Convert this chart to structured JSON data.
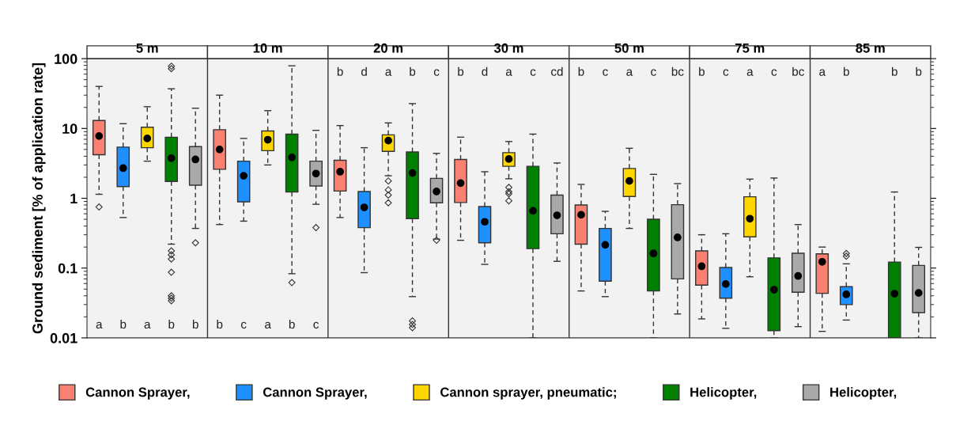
{
  "chart_data": {
    "type": "box",
    "ylabel": "Ground sediment [% of application rate]",
    "categories": [
      "5 m",
      "10 m",
      "20 m",
      "30 m",
      "50 m",
      "75 m",
      "85 m"
    ],
    "log": true,
    "ylim": [
      0.01,
      100
    ],
    "yticks": [
      0.01,
      0.1,
      1,
      10,
      100
    ],
    "legend": "bottom",
    "series": [
      {
        "name": "Cannon Sprayer,",
        "color": "#fa8072",
        "boxes": [
          {
            "low": 1.14,
            "q1": 4.2,
            "median": 7.8,
            "q3": 13,
            "high": 40,
            "outliers": [
              0.75
            ]
          },
          {
            "low": 0.42,
            "q1": 2.6,
            "median": 5.0,
            "q3": 9.6,
            "high": 30
          },
          {
            "low": 0.53,
            "q1": 1.27,
            "median": 2.4,
            "q3": 3.5,
            "high": 11
          },
          {
            "low": 0.25,
            "q1": 0.87,
            "median": 1.65,
            "q3": 3.6,
            "high": 7.5
          },
          {
            "low": 0.047,
            "q1": 0.22,
            "median": 0.58,
            "q3": 0.8,
            "high": 1.58
          },
          {
            "low": 0.0187,
            "q1": 0.057,
            "median": 0.106,
            "q3": 0.176,
            "high": 0.3
          },
          {
            "low": 0.0124,
            "q1": 0.0435,
            "median": 0.123,
            "q3": 0.16,
            "high": 0.2
          }
        ]
      },
      {
        "name": "Cannon Sprayer,",
        "color": "#1e90ff",
        "boxes": [
          {
            "low": 0.53,
            "q1": 1.47,
            "median": 2.7,
            "q3": 5.4,
            "high": 11.7
          },
          {
            "low": 0.47,
            "q1": 0.89,
            "median": 2.1,
            "q3": 3.4,
            "high": 7.2
          },
          {
            "low": 0.086,
            "q1": 0.38,
            "median": 0.74,
            "q3": 1.25,
            "high": 5.3
          },
          {
            "low": 0.113,
            "q1": 0.23,
            "median": 0.46,
            "q3": 0.76,
            "high": 2.4
          },
          {
            "low": 0.039,
            "q1": 0.065,
            "median": 0.215,
            "q3": 0.37,
            "high": 0.65
          },
          {
            "low": 0.0137,
            "q1": 0.037,
            "median": 0.059,
            "q3": 0.102,
            "high": 0.31
          },
          {
            "low": 0.018,
            "q1": 0.03,
            "median": 0.042,
            "q3": 0.054,
            "high": 0.115,
            "outliers": [
              0.162,
              0.148
            ]
          }
        ]
      },
      {
        "name": "Cannon sprayer, pneumatic;",
        "color": "#ffd700",
        "boxes": [
          {
            "low": 3.4,
            "q1": 5.3,
            "median": 7.2,
            "q3": 10.4,
            "high": 20.5
          },
          {
            "low": 3.0,
            "q1": 4.8,
            "median": 6.9,
            "q3": 9.2,
            "high": 18
          },
          {
            "low": 2.1,
            "q1": 4.7,
            "median": 6.7,
            "q3": 8.1,
            "high": 12,
            "outliers": [
              1.77,
              1.32,
              1.11,
              0.86
            ]
          },
          {
            "low": 1.9,
            "q1": 2.87,
            "median": 3.65,
            "q3": 4.5,
            "high": 6.5,
            "outliers": [
              1.43,
              1.24,
              1.16,
              0.92
            ]
          },
          {
            "low": 0.37,
            "q1": 1.06,
            "median": 1.77,
            "q3": 2.67,
            "high": 5.2
          },
          {
            "low": 0.075,
            "q1": 0.28,
            "median": 0.51,
            "q3": 1.05,
            "high": 1.88
          },
          null
        ]
      },
      {
        "name": "Helicopter,",
        "color": "#008000",
        "boxes": [
          {
            "low": 0.22,
            "q1": 1.74,
            "median": 3.75,
            "q3": 7.5,
            "high": 37,
            "outliers": [
              78,
              72,
              0.176,
              0.155,
              0.135,
              0.087,
              0.04,
              0.037,
              0.034
            ]
          },
          {
            "low": 0.083,
            "q1": 1.23,
            "median": 3.85,
            "q3": 8.3,
            "high": 79,
            "outliers": [
              0.062
            ]
          },
          {
            "low": 0.039,
            "q1": 0.51,
            "median": 2.3,
            "q3": 4.6,
            "high": 22.7,
            "outliers": [
              0.0175,
              0.0156,
              0.014
            ]
          },
          {
            "low": 0.01,
            "q1": 0.19,
            "median": 0.66,
            "q3": 2.87,
            "high": 8.3
          },
          {
            "low": 0.01,
            "q1": 0.047,
            "median": 0.162,
            "q3": 0.5,
            "high": 2.2
          },
          {
            "low": 0.01,
            "q1": 0.0127,
            "median": 0.049,
            "q3": 0.14,
            "high": 1.95
          },
          {
            "low": 0.01,
            "q1": 0.01,
            "median": 0.043,
            "q3": 0.122,
            "high": 1.23
          }
        ]
      },
      {
        "name": "Helicopter,",
        "color": "#a9a9a9",
        "boxes": [
          {
            "low": 0.37,
            "q1": 1.54,
            "median": 3.6,
            "q3": 5.5,
            "high": 19.5,
            "outliers": [
              0.23
            ]
          },
          {
            "low": 0.82,
            "q1": 1.5,
            "median": 2.26,
            "q3": 3.4,
            "high": 9.4,
            "outliers": [
              0.38
            ]
          },
          {
            "low": 0.26,
            "q1": 0.86,
            "median": 1.25,
            "q3": 1.93,
            "high": 4.4,
            "outliers": [
              0.25
            ]
          },
          {
            "low": 0.125,
            "q1": 0.31,
            "median": 0.57,
            "q3": 1.11,
            "high": 3.2
          },
          {
            "low": 0.022,
            "q1": 0.07,
            "median": 0.275,
            "q3": 0.81,
            "high": 1.62
          },
          {
            "low": 0.0145,
            "q1": 0.045,
            "median": 0.077,
            "q3": 0.163,
            "high": 0.42
          },
          {
            "low": 0.01,
            "q1": 0.023,
            "median": 0.044,
            "q3": 0.109,
            "high": 0.198
          }
        ]
      }
    ],
    "annotations": [
      "a",
      "b",
      "a",
      "b",
      "b",
      "b",
      "c",
      "a",
      "b",
      "c",
      "b",
      "d",
      "a",
      "b",
      "c",
      "b",
      "d",
      "a",
      "c",
      "cd",
      "b",
      "c",
      "a",
      "c",
      "bc",
      "b",
      "c",
      "a",
      "c",
      "bc",
      "a",
      "b",
      null,
      "b",
      "b"
    ]
  }
}
